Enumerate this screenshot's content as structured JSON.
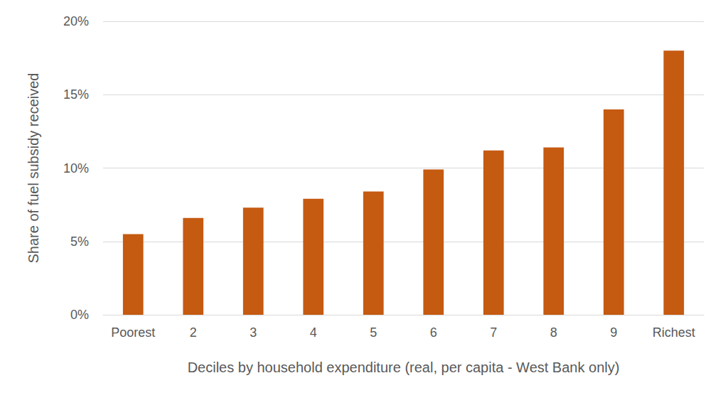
{
  "chart_data": {
    "type": "bar",
    "x_label": "Deciles by household expenditure (real, per capita - West Bank only)",
    "y_label": "Share of fuel subsidy received",
    "categories": [
      "Poorest",
      "2",
      "3",
      "4",
      "5",
      "6",
      "7",
      "8",
      "9",
      "Richest"
    ],
    "values": [
      5.5,
      6.6,
      7.3,
      7.9,
      8.4,
      9.9,
      11.2,
      11.4,
      14.0,
      18.0
    ],
    "color": "#c55a11",
    "ylim": [
      0,
      20
    ],
    "yticks": [
      {
        "value": 0,
        "label": "0%"
      },
      {
        "value": 5,
        "label": "5%"
      },
      {
        "value": 10,
        "label": "10%"
      },
      {
        "value": 15,
        "label": "15%"
      },
      {
        "value": 20,
        "label": "20%"
      }
    ],
    "grid": true
  }
}
